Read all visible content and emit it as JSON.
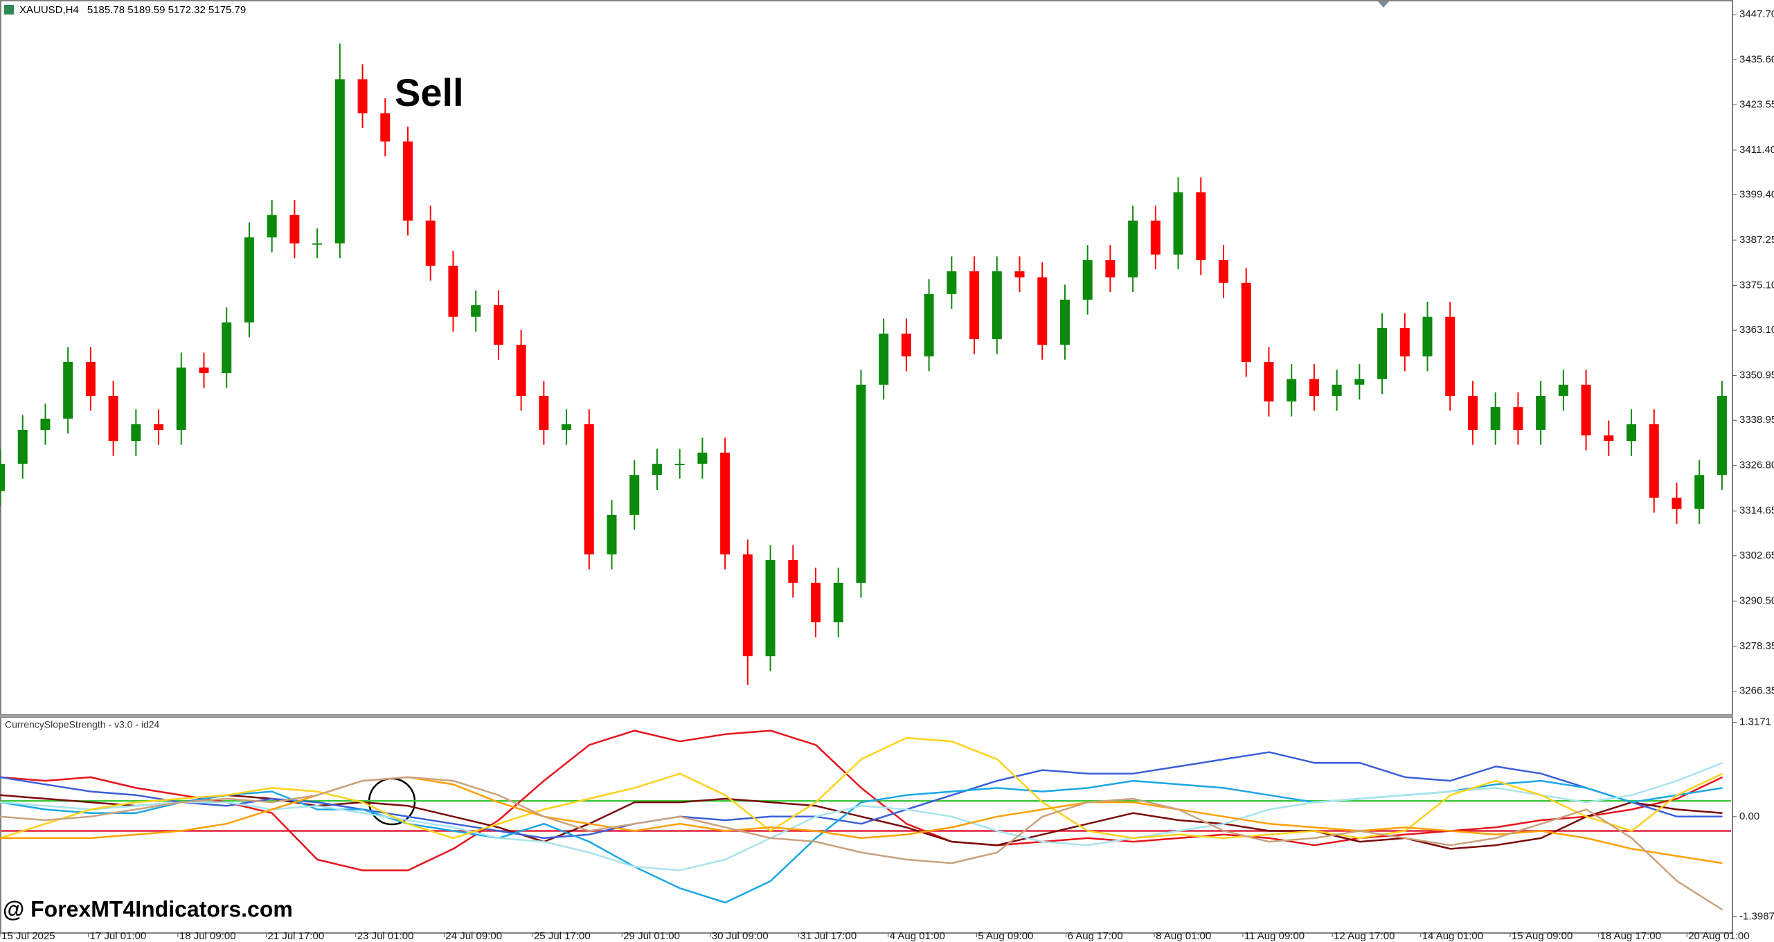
{
  "watermark": "@ ForexMT4Indicators.com",
  "chart_data": [
    {
      "type": "candlestick",
      "title": "XAUUSD,H4",
      "subtitle": "5185.78 5189.59 5172.32 5175.79",
      "annotation": "Sell",
      "up_color": "#0b8a0b",
      "down_color": "#ff0000",
      "open": [
        3320.0,
        3327.3,
        3336.4,
        3339.4,
        3354.6,
        3345.5,
        3333.4,
        3337.9,
        3336.4,
        3353.1,
        3351.6,
        3365.2,
        3388.0,
        3394.0,
        3386.4,
        3386.4,
        3430.4,
        3421.3,
        3413.7,
        3392.5,
        3380.4,
        3366.7,
        3369.8,
        3359.2,
        3345.5,
        3336.4,
        3337.9,
        3303.0,
        3313.6,
        3324.3,
        3327.3,
        3327.3,
        3330.3,
        3303.0,
        3275.7,
        3301.5,
        3295.4,
        3284.8,
        3295.4,
        3348.5,
        3362.2,
        3356.1,
        3372.8,
        3378.9,
        3360.7,
        3378.9,
        3377.3,
        3359.2,
        3371.3,
        3381.9,
        3377.3,
        3392.5,
        3383.4,
        3400.1,
        3381.9,
        3375.8,
        3354.6,
        3344.0,
        3350.0,
        3345.5,
        3348.5,
        3350.0,
        3363.7,
        3356.1,
        3366.7,
        3345.5,
        3336.4,
        3342.5,
        3336.4,
        3345.5,
        3348.5,
        3334.9,
        3333.4,
        3337.9,
        3318.2,
        3315.2,
        3324.3
      ],
      "high": [
        3331.3,
        3340.4,
        3343.4,
        3358.6,
        3358.6,
        3349.5,
        3341.9,
        3341.9,
        3357.1,
        3357.1,
        3369.2,
        3392.0,
        3398.0,
        3398.0,
        3390.4,
        3440.0,
        3434.4,
        3425.3,
        3417.7,
        3396.5,
        3384.4,
        3373.8,
        3373.8,
        3363.2,
        3349.5,
        3341.9,
        3341.9,
        3317.6,
        3328.3,
        3331.3,
        3331.3,
        3334.3,
        3334.3,
        3307.0,
        3305.5,
        3305.5,
        3299.4,
        3299.4,
        3352.5,
        3366.2,
        3366.2,
        3376.8,
        3382.9,
        3382.9,
        3382.9,
        3382.9,
        3381.3,
        3375.3,
        3385.9,
        3385.9,
        3396.5,
        3396.5,
        3404.1,
        3404.1,
        3385.9,
        3379.8,
        3358.6,
        3354.0,
        3354.0,
        3352.5,
        3354.0,
        3367.7,
        3367.7,
        3370.7,
        3370.7,
        3349.5,
        3346.5,
        3346.5,
        3349.5,
        3352.5,
        3352.5,
        3338.9,
        3341.9,
        3341.9,
        3322.2,
        3328.3,
        3349.5
      ],
      "low": [
        3316.0,
        3323.3,
        3332.4,
        3335.4,
        3341.5,
        3329.4,
        3329.4,
        3332.4,
        3332.4,
        3347.6,
        3347.6,
        3361.2,
        3384.0,
        3382.4,
        3382.4,
        3382.4,
        3417.3,
        3409.7,
        3388.5,
        3376.4,
        3362.7,
        3362.7,
        3355.2,
        3341.5,
        3332.4,
        3332.4,
        3299.0,
        3299.0,
        3309.6,
        3320.3,
        3323.3,
        3323.3,
        3299.0,
        3268.0,
        3271.7,
        3291.4,
        3280.8,
        3280.8,
        3291.4,
        3344.5,
        3352.1,
        3352.1,
        3368.8,
        3356.7,
        3356.7,
        3373.3,
        3355.2,
        3355.2,
        3367.3,
        3373.3,
        3373.3,
        3379.4,
        3379.4,
        3377.9,
        3371.8,
        3350.6,
        3340.0,
        3340.0,
        3341.5,
        3341.5,
        3344.5,
        3346.0,
        3352.1,
        3352.1,
        3341.5,
        3332.4,
        3332.4,
        3332.4,
        3332.4,
        3341.5,
        3330.9,
        3329.4,
        3329.4,
        3314.2,
        3311.2,
        3311.2,
        3320.3
      ],
      "close": [
        3327.3,
        3336.4,
        3339.4,
        3354.6,
        3345.5,
        3333.4,
        3337.9,
        3336.4,
        3353.1,
        3351.6,
        3365.2,
        3388.0,
        3394.0,
        3386.4,
        3386.4,
        3430.4,
        3421.3,
        3413.7,
        3392.5,
        3380.4,
        3366.7,
        3369.8,
        3359.2,
        3345.5,
        3336.4,
        3337.9,
        3303.0,
        3313.6,
        3324.3,
        3327.3,
        3327.3,
        3330.3,
        3303.0,
        3275.7,
        3301.5,
        3295.4,
        3284.8,
        3295.4,
        3348.5,
        3362.2,
        3356.1,
        3372.8,
        3378.9,
        3360.7,
        3378.9,
        3377.3,
        3359.2,
        3371.3,
        3381.9,
        3377.3,
        3392.5,
        3383.4,
        3400.1,
        3381.9,
        3375.8,
        3354.6,
        3344.0,
        3350.0,
        3345.5,
        3348.5,
        3350.0,
        3363.7,
        3356.1,
        3366.7,
        3345.5,
        3336.4,
        3342.5,
        3336.4,
        3345.5,
        3348.5,
        3334.9,
        3333.4,
        3337.9,
        3318.2,
        3315.2,
        3324.3,
        3345.5
      ],
      "xlim": [
        0,
        76.4
      ],
      "xticks": [
        {
          "value": 0,
          "label": "15 Jul 2025"
        },
        {
          "value": 3.9,
          "label": "17 Jul 01:00"
        },
        {
          "value": 7.85,
          "label": "18 Jul 09:00"
        },
        {
          "value": 11.75,
          "label": "21 Jul 17:00"
        },
        {
          "value": 15.7,
          "label": "23 Jul 01:00"
        },
        {
          "value": 19.6,
          "label": "24 Jul 09:00"
        },
        {
          "value": 23.5,
          "label": "25 Jul 17:00"
        },
        {
          "value": 27.45,
          "label": "29 Jul 01:00"
        },
        {
          "value": 31.35,
          "label": "30 Jul 09:00"
        },
        {
          "value": 35.25,
          "label": "31 Jul 17:00"
        },
        {
          "value": 39.2,
          "label": "4 Aug 01:00"
        },
        {
          "value": 43.1,
          "label": "5 Aug 09:00"
        },
        {
          "value": 47.05,
          "label": "6 Aug 17:00"
        },
        {
          "value": 50.95,
          "label": "8 Aug 01:00"
        },
        {
          "value": 54.85,
          "label": "11 Aug 09:00"
        },
        {
          "value": 58.8,
          "label": "12 Aug 17:00"
        },
        {
          "value": 62.7,
          "label": "14 Aug 01:00"
        },
        {
          "value": 66.65,
          "label": "15 Aug 09:00"
        },
        {
          "value": 70.55,
          "label": "18 Aug 17:00"
        },
        {
          "value": 74.45,
          "label": "20 Aug 01:00"
        }
      ],
      "ylim": [
        3259.95,
        3451.64
      ],
      "yticks": [
        {
          "value": 3447.7,
          "label": "3447.70"
        },
        {
          "value": 3435.6,
          "label": "3435.60"
        },
        3423.55,
        {
          "value": 3411.4,
          "label": "3411.40"
        },
        {
          "value": 3399.4,
          "label": "3399.40"
        },
        3387.25,
        {
          "value": 3375.1,
          "label": "3375.10"
        },
        {
          "value": 3363.1,
          "label": "3363.10"
        },
        3350.95,
        3338.95,
        {
          "value": 3326.8,
          "label": "3326.80"
        },
        3314.65,
        3302.65,
        {
          "value": 3290.5,
          "label": "3290.50"
        },
        3278.35,
        3266.35
      ]
    },
    {
      "type": "line",
      "title": "CurrencySlopeStrength - v3.0 - id24",
      "ylim": [
        -1.615,
        1.38
      ],
      "yticks": [
        1.3171,
        {
          "value": 0,
          "label": "0.00"
        },
        -1.3987
      ],
      "levels": [
        {
          "value": 0.22,
          "color": "#3cc83c"
        },
        {
          "value": -0.2,
          "color": "#e0203a"
        }
      ],
      "series": [
        {
          "color": "#e8131b",
          "values": [
            0.55,
            0.5,
            0.55,
            0.4,
            0.3,
            0.2,
            0.05,
            -0.6,
            -0.75,
            -0.75,
            -0.45,
            -0.05,
            0.5,
            1.0,
            1.2,
            1.05,
            1.15,
            1.2,
            1.0,
            0.4,
            -0.1,
            -0.35,
            -0.4,
            -0.35,
            -0.3,
            -0.35,
            -0.3,
            -0.25,
            -0.3,
            -0.4,
            -0.3,
            -0.25,
            -0.2,
            -0.15,
            -0.05,
            0,
            0.1,
            0.25,
            0.55
          ]
        },
        {
          "color": "#7a0a0a",
          "values": [
            0.3,
            0.25,
            0.2,
            0.15,
            0.2,
            0.3,
            0.25,
            0.15,
            0.2,
            0.15,
            0,
            -0.15,
            -0.35,
            -0.1,
            0.2,
            0.2,
            0.25,
            0.2,
            0.15,
            0,
            -0.15,
            -0.35,
            -0.4,
            -0.25,
            -0.1,
            0.05,
            -0.05,
            -0.1,
            -0.2,
            -0.2,
            -0.35,
            -0.3,
            -0.45,
            -0.4,
            -0.3,
            0,
            0.2,
            0.1,
            0.05
          ]
        },
        {
          "color": "#3a5fd9",
          "values": [
            0.55,
            0.45,
            0.35,
            0.3,
            0.2,
            0.15,
            0.25,
            0.2,
            0.1,
            0,
            -0.1,
            -0.2,
            -0.3,
            -0.25,
            -0.1,
            0,
            -0.05,
            0,
            0,
            -0.1,
            0.1,
            0.3,
            0.5,
            0.65,
            0.6,
            0.6,
            0.7,
            0.8,
            0.9,
            0.75,
            0.75,
            0.55,
            0.5,
            0.7,
            0.6,
            0.4,
            0.2,
            0,
            0
          ]
        },
        {
          "color": "#1aa7e8",
          "values": [
            0.2,
            0.1,
            0.05,
            0.05,
            0.2,
            0.3,
            0.35,
            0.1,
            0.1,
            -0.1,
            -0.2,
            -0.3,
            -0.1,
            -0.35,
            -0.7,
            -1.0,
            -1.2,
            -0.9,
            -0.3,
            0.2,
            0.3,
            0.35,
            0.4,
            0.35,
            0.4,
            0.5,
            0.45,
            0.4,
            0.3,
            0.2,
            0.25,
            0.3,
            0.35,
            0.45,
            0.5,
            0.4,
            0.2,
            0.3,
            0.4
          ]
        },
        {
          "color": "#a8e4ee",
          "values": [
            0.2,
            0.15,
            0.1,
            0.15,
            0.2,
            0.2,
            0.1,
            0.15,
            0.05,
            -0.05,
            -0.15,
            -0.3,
            -0.35,
            -0.5,
            -0.7,
            -0.75,
            -0.6,
            -0.3,
            0,
            0.15,
            0.1,
            0,
            -0.2,
            -0.35,
            -0.4,
            -0.3,
            -0.2,
            -0.1,
            0.1,
            0.2,
            0.25,
            0.3,
            0.35,
            0.4,
            0.3,
            0.2,
            0.3,
            0.5,
            0.75
          ]
        },
        {
          "color": "#ffd21a",
          "values": [
            -0.3,
            -0.1,
            0.1,
            0.2,
            0.25,
            0.3,
            0.4,
            0.35,
            0.2,
            -0.1,
            -0.3,
            -0.1,
            0.1,
            0.25,
            0.4,
            0.6,
            0.3,
            -0.2,
            0.2,
            0.8,
            1.1,
            1.05,
            0.8,
            0.2,
            -0.2,
            -0.3,
            -0.25,
            -0.3,
            -0.25,
            -0.2,
            -0.3,
            -0.2,
            0.3,
            0.5,
            0.3,
            0,
            -0.2,
            0.3,
            0.6
          ]
        },
        {
          "color": "#ffa000",
          "values": [
            -0.3,
            -0.3,
            -0.3,
            -0.25,
            -0.2,
            -0.1,
            0.1,
            0.3,
            0.5,
            0.55,
            0.45,
            0.2,
            0,
            -0.1,
            -0.2,
            -0.1,
            -0.2,
            -0.15,
            -0.2,
            -0.3,
            -0.25,
            -0.15,
            0,
            0.1,
            0.2,
            0.2,
            0.1,
            0,
            -0.1,
            -0.15,
            -0.2,
            -0.15,
            -0.2,
            -0.25,
            -0.2,
            -0.3,
            -0.45,
            -0.55,
            -0.65
          ]
        },
        {
          "color": "#c9a27e",
          "values": [
            0,
            -0.05,
            0,
            0.1,
            0.2,
            0.25,
            0.2,
            0.3,
            0.5,
            0.55,
            0.5,
            0.3,
            0,
            -0.2,
            -0.1,
            0,
            -0.15,
            -0.3,
            -0.35,
            -0.5,
            -0.6,
            -0.65,
            -0.5,
            0,
            0.2,
            0.25,
            0.1,
            -0.2,
            -0.35,
            -0.3,
            -0.2,
            -0.3,
            -0.4,
            -0.3,
            -0.1,
            0.1,
            -0.3,
            -0.9,
            -1.3
          ]
        }
      ]
    }
  ]
}
